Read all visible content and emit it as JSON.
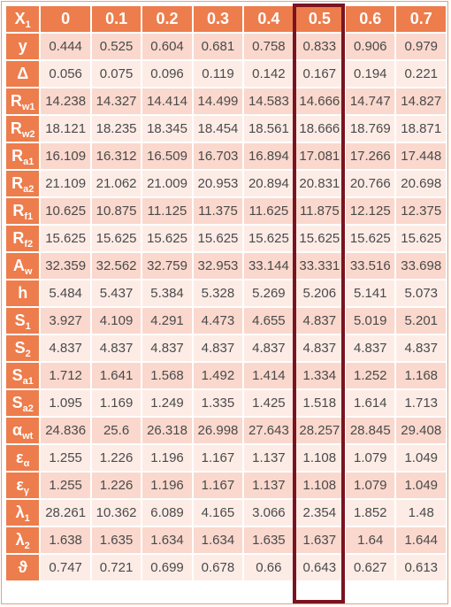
{
  "header": {
    "corner": {
      "main": "X",
      "sub": "1"
    },
    "columns": [
      "0",
      "0.1",
      "0.2",
      "0.3",
      "0.4",
      "0.5",
      "0.6",
      "0.7"
    ]
  },
  "highlighted_column": "0.5",
  "rows": [
    {
      "label": {
        "main": "y",
        "sub": ""
      },
      "values": [
        "0.444",
        "0.525",
        "0.604",
        "0.681",
        "0.758",
        "0.833",
        "0.906",
        "0.979"
      ]
    },
    {
      "label": {
        "main": "Δ",
        "sub": ""
      },
      "values": [
        "0.056",
        "0.075",
        "0.096",
        "0.119",
        "0.142",
        "0.167",
        "0.194",
        "0.221"
      ]
    },
    {
      "label": {
        "main": "R",
        "sub": "w1"
      },
      "values": [
        "14.238",
        "14.327",
        "14.414",
        "14.499",
        "14.583",
        "14.666",
        "14.747",
        "14.827"
      ]
    },
    {
      "label": {
        "main": "R",
        "sub": "w2"
      },
      "values": [
        "18.121",
        "18.235",
        "18.345",
        "18.454",
        "18.561",
        "18.666",
        "18.769",
        "18.871"
      ]
    },
    {
      "label": {
        "main": "R",
        "sub": "a1"
      },
      "values": [
        "16.109",
        "16.312",
        "16.509",
        "16.703",
        "16.894",
        "17.081",
        "17.266",
        "17.448"
      ]
    },
    {
      "label": {
        "main": "R",
        "sub": "a2"
      },
      "values": [
        "21.109",
        "21.062",
        "21.009",
        "20.953",
        "20.894",
        "20.831",
        "20.766",
        "20.698"
      ]
    },
    {
      "label": {
        "main": "R",
        "sub": "f1"
      },
      "values": [
        "10.625",
        "10.875",
        "11.125",
        "11.375",
        "11.625",
        "11.875",
        "12.125",
        "12.375"
      ]
    },
    {
      "label": {
        "main": "R",
        "sub": "f2"
      },
      "values": [
        "15.625",
        "15.625",
        "15.625",
        "15.625",
        "15.625",
        "15.625",
        "15.625",
        "15.625"
      ]
    },
    {
      "label": {
        "main": "A",
        "sub": "w"
      },
      "values": [
        "32.359",
        "32.562",
        "32.759",
        "32.953",
        "33.144",
        "33.331",
        "33.516",
        "33.698"
      ]
    },
    {
      "label": {
        "main": "h",
        "sub": ""
      },
      "values": [
        "5.484",
        "5.437",
        "5.384",
        "5.328",
        "5.269",
        "5.206",
        "5.141",
        "5.073"
      ]
    },
    {
      "label": {
        "main": "S",
        "sub": "1"
      },
      "values": [
        "3.927",
        "4.109",
        "4.291",
        "4.473",
        "4.655",
        "4.837",
        "5.019",
        "5.201"
      ]
    },
    {
      "label": {
        "main": "S",
        "sub": "2"
      },
      "values": [
        "4.837",
        "4.837",
        "4.837",
        "4.837",
        "4.837",
        "4.837",
        "4.837",
        "4.837"
      ]
    },
    {
      "label": {
        "main": "S",
        "sub": "a1"
      },
      "values": [
        "1.712",
        "1.641",
        "1.568",
        "1.492",
        "1.414",
        "1.334",
        "1.252",
        "1.168"
      ]
    },
    {
      "label": {
        "main": "S",
        "sub": "a2"
      },
      "values": [
        "1.095",
        "1.169",
        "1.249",
        "1.335",
        "1.425",
        "1.518",
        "1.614",
        "1.713"
      ]
    },
    {
      "label": {
        "main": "α",
        "sub": "wt"
      },
      "values": [
        "24.836",
        "25.6",
        "26.318",
        "26.998",
        "27.643",
        "28.257",
        "28.845",
        "29.408"
      ]
    },
    {
      "label": {
        "main": "ε",
        "sub": "α"
      },
      "values": [
        "1.255",
        "1.226",
        "1.196",
        "1.167",
        "1.137",
        "1.108",
        "1.079",
        "1.049"
      ]
    },
    {
      "label": {
        "main": "ε",
        "sub": "γ"
      },
      "values": [
        "1.255",
        "1.226",
        "1.196",
        "1.167",
        "1.137",
        "1.108",
        "1.079",
        "1.049"
      ]
    },
    {
      "label": {
        "main": "λ",
        "sub": "1"
      },
      "values": [
        "28.261",
        "10.362",
        "6.089",
        "4.165",
        "3.066",
        "2.354",
        "1.852",
        "1.48"
      ]
    },
    {
      "label": {
        "main": "λ",
        "sub": "2"
      },
      "values": [
        "1.638",
        "1.635",
        "1.634",
        "1.634",
        "1.635",
        "1.637",
        "1.64",
        "1.644"
      ]
    },
    {
      "label": {
        "main": "ϑ",
        "sub": ""
      },
      "values": [
        "0.747",
        "0.721",
        "0.699",
        "0.678",
        "0.66",
        "0.643",
        "0.627",
        "0.613"
      ]
    }
  ],
  "colors": {
    "header_bg": "#ed7d4c",
    "row_odd_bg": "#fad8cd",
    "row_even_bg": "#fdece6",
    "highlight_border": "#7a1420"
  }
}
